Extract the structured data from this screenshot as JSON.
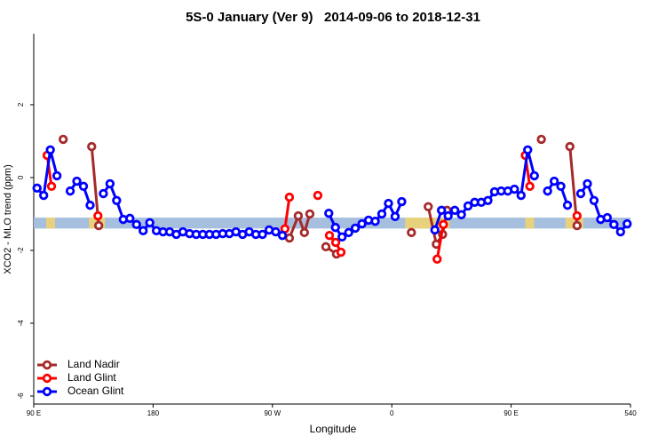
{
  "chart_data": {
    "type": "line",
    "title": "5S-0 January (Ver 9)   2014-09-06 to 2018-12-31",
    "x_label": "Longitude",
    "y_label": "XCO2 - MLO trend (ppm)",
    "xlim": [
      90,
      540
    ],
    "ylim": [
      -6.22,
      3.95
    ],
    "xticks": [
      {
        "value": 90,
        "label": "90 E"
      },
      180,
      {
        "value": 270,
        "label": "90 W"
      },
      0,
      {
        "value": 450,
        "label": "90 E"
      },
      540
    ],
    "yticks": [
      -6,
      -4,
      -2,
      0,
      2
    ],
    "legend_position": "bottomleft",
    "band": {
      "y": [
        -1.4,
        -1.1
      ],
      "color": "#a7bfdf",
      "land_color": "#f3d36b",
      "land": [
        [
          99.4,
          106.1
        ],
        [
          131.6,
          143.7
        ],
        [
          370,
          403.6
        ],
        [
          460.7,
          467.4
        ],
        [
          491,
          504.4
        ]
      ]
    },
    "series": [
      {
        "name": "Land Nadir",
        "color": "#a52a2a",
        "x": [
          112.2,
          null,
          133.7,
          139,
          null,
          282.8,
          289.5,
          294.1,
          298.2,
          null,
          310.3,
          318.3,
          null,
          374.8,
          null,
          387.5,
          393.6,
          398.3,
          401.6,
          null,
          472.8,
          null,
          494.3,
          499.7
        ],
        "values": [
          1.05,
          null,
          0.85,
          -1.32,
          null,
          -1.66,
          -1.05,
          -1.51,
          -1.0,
          null,
          -1.9,
          -2.1,
          null,
          -1.51,
          null,
          -0.8,
          -1.83,
          -1.56,
          -0.9,
          null,
          1.05,
          null,
          0.85,
          -1.32
        ]
      },
      {
        "name": "Land Glint",
        "color": "#ff0000",
        "x": [
          100.1,
          103.4,
          null,
          138.4,
          null,
          279.4,
          282.8,
          null,
          304.2,
          null,
          313,
          317.7,
          321.7,
          null,
          394.2,
          398.9,
          null,
          460.7,
          464.1,
          null,
          499.7
        ],
        "values": [
          0.61,
          -0.24,
          null,
          -1.05,
          null,
          -1.41,
          -0.54,
          null,
          -0.49,
          null,
          -1.59,
          -1.78,
          -2.05,
          null,
          -2.24,
          -1.29,
          null,
          0.61,
          -0.24,
          null,
          -1.05
        ]
      },
      {
        "name": "Ocean Glint",
        "color": "#0000ff",
        "x": [
          92.5,
          97.5,
          102.5,
          107.5,
          112.5,
          117.5,
          122.5,
          127.5,
          132.5,
          137.5,
          142.5,
          147.5,
          152.5,
          157.5,
          162.5,
          167.5,
          172.5,
          177.5,
          182.5,
          187.5,
          192.5,
          197.5,
          202.5,
          207.5,
          212.5,
          217.5,
          222.5,
          227.5,
          232.5,
          237.5,
          242.5,
          247.5,
          252.5,
          257.5,
          262.5,
          267.5,
          272.5,
          277.5,
          282.5,
          287.5,
          292.5,
          297.5,
          302.5,
          307.5,
          312.5,
          317.5,
          322.5,
          327.5,
          332.5,
          337.5,
          342.5,
          347.5,
          352.5,
          357.5,
          362.5,
          367.5,
          372.5,
          377.5,
          382.5,
          387.5,
          392.5,
          397.5,
          402.5,
          407.5,
          412.5,
          417.5,
          422.5,
          427.5,
          432.5,
          437.5,
          442.5,
          447.5,
          452.5,
          457.5,
          462.5,
          467.5,
          472.5,
          477.5,
          482.5,
          487.5,
          492.5,
          497.5,
          502.5,
          507.5,
          512.5,
          517.5,
          522.5,
          527.5,
          532.5,
          537.5
        ],
        "values": [
          -0.29,
          -0.49,
          0.76,
          0.05,
          null,
          -0.37,
          -0.1,
          -0.24,
          -0.76,
          null,
          -0.44,
          -0.17,
          -0.63,
          -1.15,
          -1.12,
          -1.29,
          -1.46,
          -1.24,
          -1.46,
          -1.49,
          -1.49,
          -1.56,
          -1.49,
          -1.54,
          -1.56,
          -1.56,
          -1.56,
          -1.56,
          -1.54,
          -1.54,
          -1.49,
          -1.56,
          -1.49,
          -1.56,
          -1.56,
          -1.44,
          -1.49,
          -1.59,
          null,
          null,
          null,
          null,
          null,
          null,
          -0.98,
          -1.37,
          -1.63,
          -1.51,
          -1.39,
          -1.27,
          -1.17,
          -1.2,
          -1.0,
          -0.71,
          -1.07,
          -0.66,
          null,
          null,
          null,
          null,
          -1.44,
          -0.9,
          -1.05,
          -0.9,
          -1.02,
          -0.78,
          -0.68,
          -0.68,
          -0.63,
          -0.39,
          -0.37,
          -0.37,
          -0.32,
          -0.49,
          0.76,
          0.05,
          null,
          -0.37,
          -0.1,
          -0.24,
          -0.76,
          null,
          -0.44,
          -0.17,
          -0.63,
          -1.15,
          -1.1,
          -1.29,
          -1.49,
          -1.27
        ]
      }
    ]
  }
}
